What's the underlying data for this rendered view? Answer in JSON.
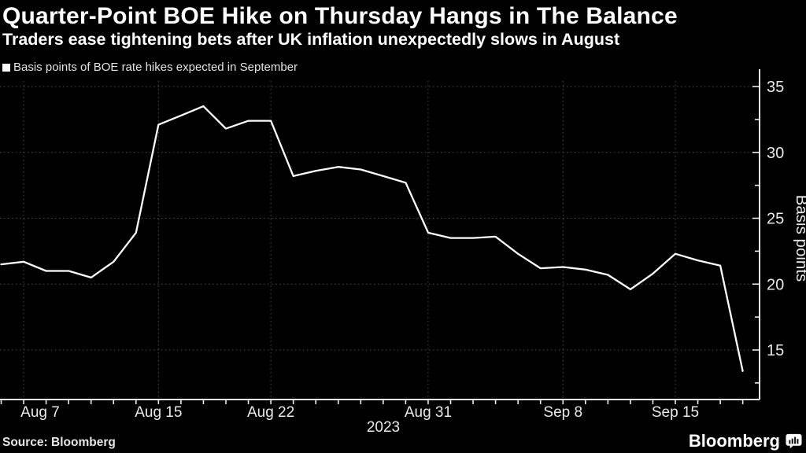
{
  "header": {
    "title": "Quarter-Point BOE Hike on Thursday Hangs in The Balance",
    "subtitle": "Traders ease tightening bets after UK inflation unexpectedly slows in August"
  },
  "legend": {
    "label": "Basis points of BOE rate hikes expected in September",
    "marker_color": "#ffffff"
  },
  "footer": {
    "source": "Source: Bloomberg",
    "brand": "Bloomberg"
  },
  "chart_data": {
    "type": "line",
    "title": "Quarter-Point BOE Hike on Thursday Hangs in The Balance",
    "legend": "Basis points of BOE rate hikes expected in September",
    "ylabel": "Basis points",
    "y_axis_side": "right",
    "ylim": [
      11.7,
      36.6
    ],
    "y_ticks": [
      15,
      20,
      25,
      30,
      35
    ],
    "y_minor_ticks": [
      12.5,
      17.5,
      22.5,
      27.5,
      32.5
    ],
    "grid": "dotted",
    "series_color": "#ffffff",
    "background_color": "#000000",
    "x_axis_year": "2023",
    "x": [
      "Aug 4",
      "Aug 7",
      "Aug 8",
      "Aug 9",
      "Aug 10",
      "Aug 11",
      "Aug 14",
      "Aug 15",
      "Aug 16",
      "Aug 17",
      "Aug 18",
      "Aug 21",
      "Aug 22",
      "Aug 23",
      "Aug 24",
      "Aug 25",
      "Aug 28",
      "Aug 29",
      "Aug 30",
      "Aug 31",
      "Sep 1",
      "Sep 4",
      "Sep 5",
      "Sep 6",
      "Sep 7",
      "Sep 8",
      "Sep 11",
      "Sep 12",
      "Sep 13",
      "Sep 14",
      "Sep 15",
      "Sep 18",
      "Sep 19",
      "Sep 20"
    ],
    "values": [
      21.5,
      21.7,
      21.0,
      21.0,
      20.5,
      21.7,
      23.9,
      32.1,
      32.8,
      33.5,
      31.8,
      32.4,
      32.4,
      28.2,
      28.6,
      28.9,
      28.7,
      28.2,
      27.7,
      23.9,
      23.5,
      23.5,
      23.6,
      22.3,
      21.2,
      21.3,
      21.1,
      20.7,
      19.6,
      20.8,
      22.3,
      21.8,
      21.4,
      13.4
    ],
    "x_tick_labels": [
      {
        "label": "Aug 7",
        "index": 1
      },
      {
        "label": "Aug 15",
        "index": 7
      },
      {
        "label": "Aug 22",
        "index": 12
      },
      {
        "label": "Aug 31",
        "index": 19
      },
      {
        "label": "Sep 8",
        "index": 25
      },
      {
        "label": "Sep 15",
        "index": 30
      }
    ]
  }
}
